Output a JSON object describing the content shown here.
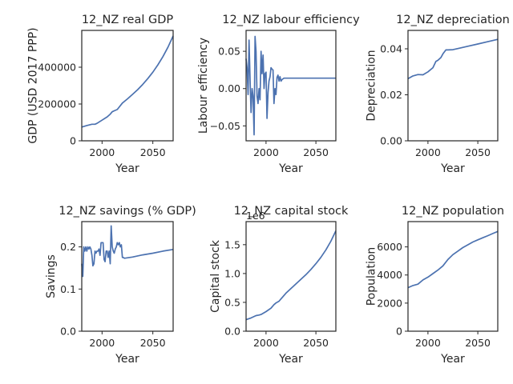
{
  "chart_data": [
    {
      "type": "line",
      "title": "12_NZ real GDP",
      "xlabel": "Year",
      "ylabel": "GDP (USD 2017 PPP)",
      "xlim": [
        1980,
        2070
      ],
      "ylim": [
        0,
        600000
      ],
      "xticks": [
        2000,
        2050
      ],
      "yticks": [
        0,
        200000,
        400000
      ],
      "ytick_labels": [
        "0",
        "200000",
        "400000"
      ],
      "offset_text": "",
      "color": "#4c72b0",
      "series": [
        {
          "x": [
            1980,
            1985,
            1990,
            1993,
            1995,
            2000,
            2005,
            2008,
            2010,
            2012,
            2015,
            2020,
            2025,
            2030,
            2035,
            2040,
            2045,
            2050,
            2055,
            2060,
            2065,
            2070
          ],
          "y": [
            75000,
            83000,
            90000,
            90000,
            95000,
            112000,
            130000,
            145000,
            158000,
            163000,
            170000,
            205000,
            228000,
            252000,
            278000,
            306000,
            338000,
            373000,
            413000,
            458000,
            510000,
            570000
          ]
        }
      ]
    },
    {
      "type": "line",
      "title": "12_NZ labour efficiency",
      "xlabel": "Year",
      "ylabel": "Labour efficiency",
      "xlim": [
        1980,
        2070
      ],
      "ylim": [
        -0.07,
        0.078
      ],
      "xticks": [
        2000,
        2050
      ],
      "yticks": [
        -0.05,
        0,
        0.05
      ],
      "ytick_labels": [
        "−0.05",
        "0.00",
        "0.05"
      ],
      "offset_text": "",
      "color": "#4c72b0",
      "series": [
        {
          "x": [
            1980,
            1981,
            1982,
            1983,
            1984,
            1985,
            1986,
            1987,
            1988,
            1989,
            1990,
            1991,
            1992,
            1993,
            1994,
            1995,
            1996,
            1997,
            1998,
            1999,
            2000,
            2001,
            2002,
            2003,
            2004,
            2005,
            2006,
            2007,
            2008,
            2009,
            2010,
            2011,
            2012,
            2013,
            2014,
            2015,
            2016,
            2017,
            2018,
            2019,
            2020,
            2021,
            2022,
            2023,
            2024,
            2025,
            2026,
            2027,
            2028,
            2030,
            2040,
            2050,
            2060,
            2070
          ],
          "y": [
            0.04,
            0.028,
            -0.008,
            0.065,
            0.012,
            -0.032,
            0.0,
            -0.01,
            -0.062,
            0.07,
            0.05,
            -0.01,
            -0.02,
            0.0,
            -0.015,
            0.05,
            0.02,
            0.045,
            0.0,
            0.02,
            0.022,
            -0.04,
            -0.005,
            0.01,
            0.016,
            0.028,
            0.026,
            0.025,
            -0.02,
            0.0,
            -0.008,
            0.015,
            0.018,
            0.01,
            0.016,
            0.01,
            0.012,
            0.013,
            0.014,
            0.014,
            0.014,
            0.014,
            0.014,
            0.014,
            0.014,
            0.014,
            0.014,
            0.014,
            0.014,
            0.014,
            0.014,
            0.014,
            0.014,
            0.014
          ]
        }
      ]
    },
    {
      "type": "line",
      "title": "12_NZ depreciation",
      "xlabel": "Year",
      "ylabel": "Depreciation",
      "xlim": [
        1980,
        2070
      ],
      "ylim": [
        0,
        0.048
      ],
      "xticks": [
        2000,
        2050
      ],
      "yticks": [
        0,
        0.02,
        0.04
      ],
      "ytick_labels": [
        "0.00",
        "0.02",
        "0.04"
      ],
      "offset_text": "",
      "color": "#4c72b0",
      "series": [
        {
          "x": [
            1980,
            1985,
            1990,
            1995,
            2000,
            2005,
            2008,
            2010,
            2013,
            2015,
            2018,
            2020,
            2025,
            2030,
            2040,
            2050,
            2060,
            2070
          ],
          "y": [
            0.027,
            0.0282,
            0.0288,
            0.0287,
            0.03,
            0.0318,
            0.0345,
            0.035,
            0.0362,
            0.0378,
            0.0395,
            0.0395,
            0.0396,
            0.0401,
            0.0411,
            0.0421,
            0.0431,
            0.0441
          ]
        }
      ]
    },
    {
      "type": "line",
      "title": "12_NZ savings (% GDP)",
      "xlabel": "Year",
      "ylabel": "Savings",
      "xlim": [
        1980,
        2070
      ],
      "ylim": [
        0,
        0.26
      ],
      "xticks": [
        2000,
        2050
      ],
      "yticks": [
        0,
        0.1,
        0.2
      ],
      "ytick_labels": [
        "0.0",
        "0.1",
        "0.2"
      ],
      "offset_text": "",
      "color": "#4c72b0",
      "series": [
        {
          "x": [
            1980,
            1981,
            1982,
            1983,
            1984,
            1985,
            1986,
            1987,
            1988,
            1989,
            1990,
            1991,
            1992,
            1993,
            1994,
            1995,
            1996,
            1997,
            1998,
            1999,
            2000,
            2001,
            2002,
            2003,
            2004,
            2005,
            2006,
            2007,
            2008,
            2009,
            2010,
            2011,
            2012,
            2013,
            2014,
            2015,
            2016,
            2017,
            2018,
            2019,
            2020,
            2021,
            2022,
            2030,
            2040,
            2050,
            2060,
            2070
          ],
          "y": [
            0.16,
            0.13,
            0.2,
            0.19,
            0.2,
            0.19,
            0.2,
            0.195,
            0.2,
            0.195,
            0.18,
            0.155,
            0.16,
            0.19,
            0.185,
            0.19,
            0.19,
            0.195,
            0.18,
            0.21,
            0.21,
            0.21,
            0.17,
            0.165,
            0.19,
            0.19,
            0.175,
            0.19,
            0.16,
            0.25,
            0.2,
            0.19,
            0.185,
            0.195,
            0.2,
            0.21,
            0.205,
            0.21,
            0.2,
            0.205,
            0.175,
            0.175,
            0.173,
            0.176,
            0.181,
            0.185,
            0.19,
            0.194
          ]
        }
      ]
    },
    {
      "type": "line",
      "title": "12_NZ capital stock",
      "xlabel": "Year",
      "ylabel": "Capital stock",
      "xlim": [
        1980,
        2070
      ],
      "ylim": [
        0,
        1900000
      ],
      "xticks": [
        2000,
        2050
      ],
      "yticks": [
        0,
        500000,
        1000000,
        1500000
      ],
      "ytick_labels": [
        "0.0",
        "0.5",
        "1.0",
        "1.5"
      ],
      "offset_text": "1e6",
      "color": "#4c72b0",
      "series": [
        {
          "x": [
            1980,
            1985,
            1990,
            1993,
            1995,
            2000,
            2005,
            2008,
            2010,
            2013,
            2015,
            2020,
            2025,
            2030,
            2035,
            2040,
            2045,
            2050,
            2055,
            2060,
            2065,
            2070
          ],
          "y": [
            200000,
            230000,
            270000,
            280000,
            290000,
            340000,
            400000,
            460000,
            490000,
            520000,
            560000,
            660000,
            740000,
            820000,
            900000,
            980000,
            1070000,
            1170000,
            1280000,
            1410000,
            1560000,
            1740000
          ]
        }
      ]
    },
    {
      "type": "line",
      "title": "12_NZ population",
      "xlabel": "Year",
      "ylabel": "Population",
      "xlim": [
        1980,
        2070
      ],
      "ylim": [
        0,
        7800
      ],
      "xticks": [
        2000,
        2050
      ],
      "yticks": [
        0,
        2000,
        4000,
        6000
      ],
      "ytick_labels": [
        "0",
        "2000",
        "4000",
        "6000"
      ],
      "offset_text": "",
      "color": "#4c72b0",
      "series": [
        {
          "x": [
            1980,
            1985,
            1990,
            1995,
            2000,
            2005,
            2010,
            2015,
            2020,
            2025,
            2030,
            2035,
            2040,
            2045,
            2050,
            2055,
            2060,
            2065,
            2070
          ],
          "y": [
            3100,
            3250,
            3350,
            3650,
            3850,
            4100,
            4350,
            4650,
            5100,
            5450,
            5700,
            5950,
            6150,
            6350,
            6500,
            6650,
            6800,
            6950,
            7100
          ]
        }
      ]
    }
  ]
}
